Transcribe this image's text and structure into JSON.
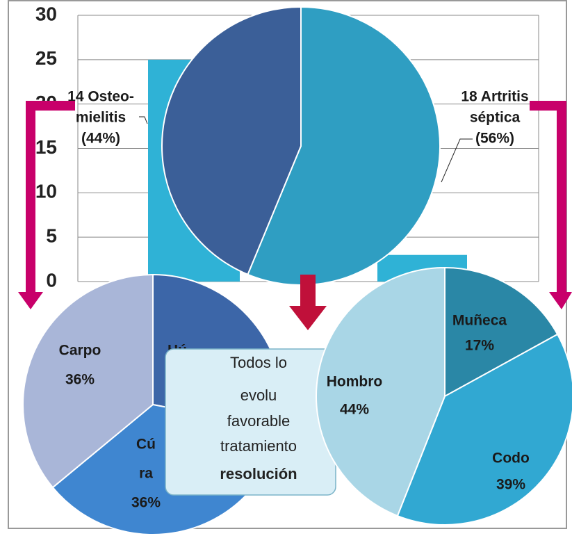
{
  "chart_data": [
    {
      "type": "bar",
      "categories": [
        null,
        null
      ],
      "values": [
        25,
        3
      ],
      "color": "#2fb2d6",
      "ylim": [
        0,
        30
      ],
      "yticks": [
        0,
        5,
        10,
        15,
        20,
        25,
        30
      ],
      "grid": true
    },
    {
      "type": "pie",
      "values": [
        18,
        14
      ],
      "colors": [
        "#2f9ec2",
        "#3b5f98"
      ],
      "label_lines": [
        [
          "18 Artritis",
          "séptica",
          "(56%)"
        ],
        [
          "14 Osteo-",
          "mielitis",
          "(44%)"
        ]
      ]
    },
    {
      "type": "pie",
      "values": [
        28,
        36,
        36
      ],
      "colors": [
        "#3c66a8",
        "#3f86d0",
        "#a9b6d8"
      ],
      "label_lines": [
        [
          "Hú"
        ],
        [
          "Cú",
          "ra",
          "36%"
        ],
        [
          "Carpo",
          "36%"
        ]
      ]
    },
    {
      "type": "pie",
      "values": [
        17,
        39,
        44
      ],
      "colors": [
        "#2a87a6",
        "#31a8d2",
        "#a9d6e6"
      ],
      "label_lines": [
        [
          "Muñeca",
          "17%"
        ],
        [
          "Codo",
          "39%"
        ],
        [
          "Hombro",
          "44%"
        ]
      ]
    }
  ],
  "textbox": {
    "lines": [
      "Todos lo",
      "evolu",
      "favorable",
      "tratamiento",
      "resolución"
    ]
  }
}
